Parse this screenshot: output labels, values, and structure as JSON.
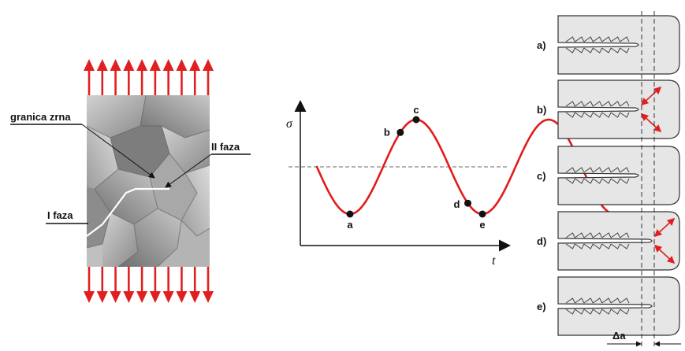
{
  "microstructure": {
    "labels": {
      "grain_boundary": "granica zrna",
      "phase_two": "II faza",
      "phase_one": "I faza"
    },
    "arrow_count_per_side": 10,
    "arrow_color": "#e02020"
  },
  "chart_data": {
    "type": "line",
    "ylabel": "σ",
    "xlabel": "t",
    "curve_color": "#e31b1b",
    "points": [
      {
        "label": "a",
        "phase": 0.25
      },
      {
        "label": "b",
        "phase": 0.63
      },
      {
        "label": "c",
        "phase": 0.75
      },
      {
        "label": "d",
        "phase": 1.14
      },
      {
        "label": "e",
        "phase": 1.25
      }
    ],
    "cycles_shown": 2.25
  },
  "crack_stages": {
    "labels": [
      "a)",
      "b)",
      "c)",
      "d)",
      "e)"
    ],
    "increment_label": "Δa",
    "specimen_fill": "#e6e6e6",
    "arrow_color": "#e02020"
  }
}
